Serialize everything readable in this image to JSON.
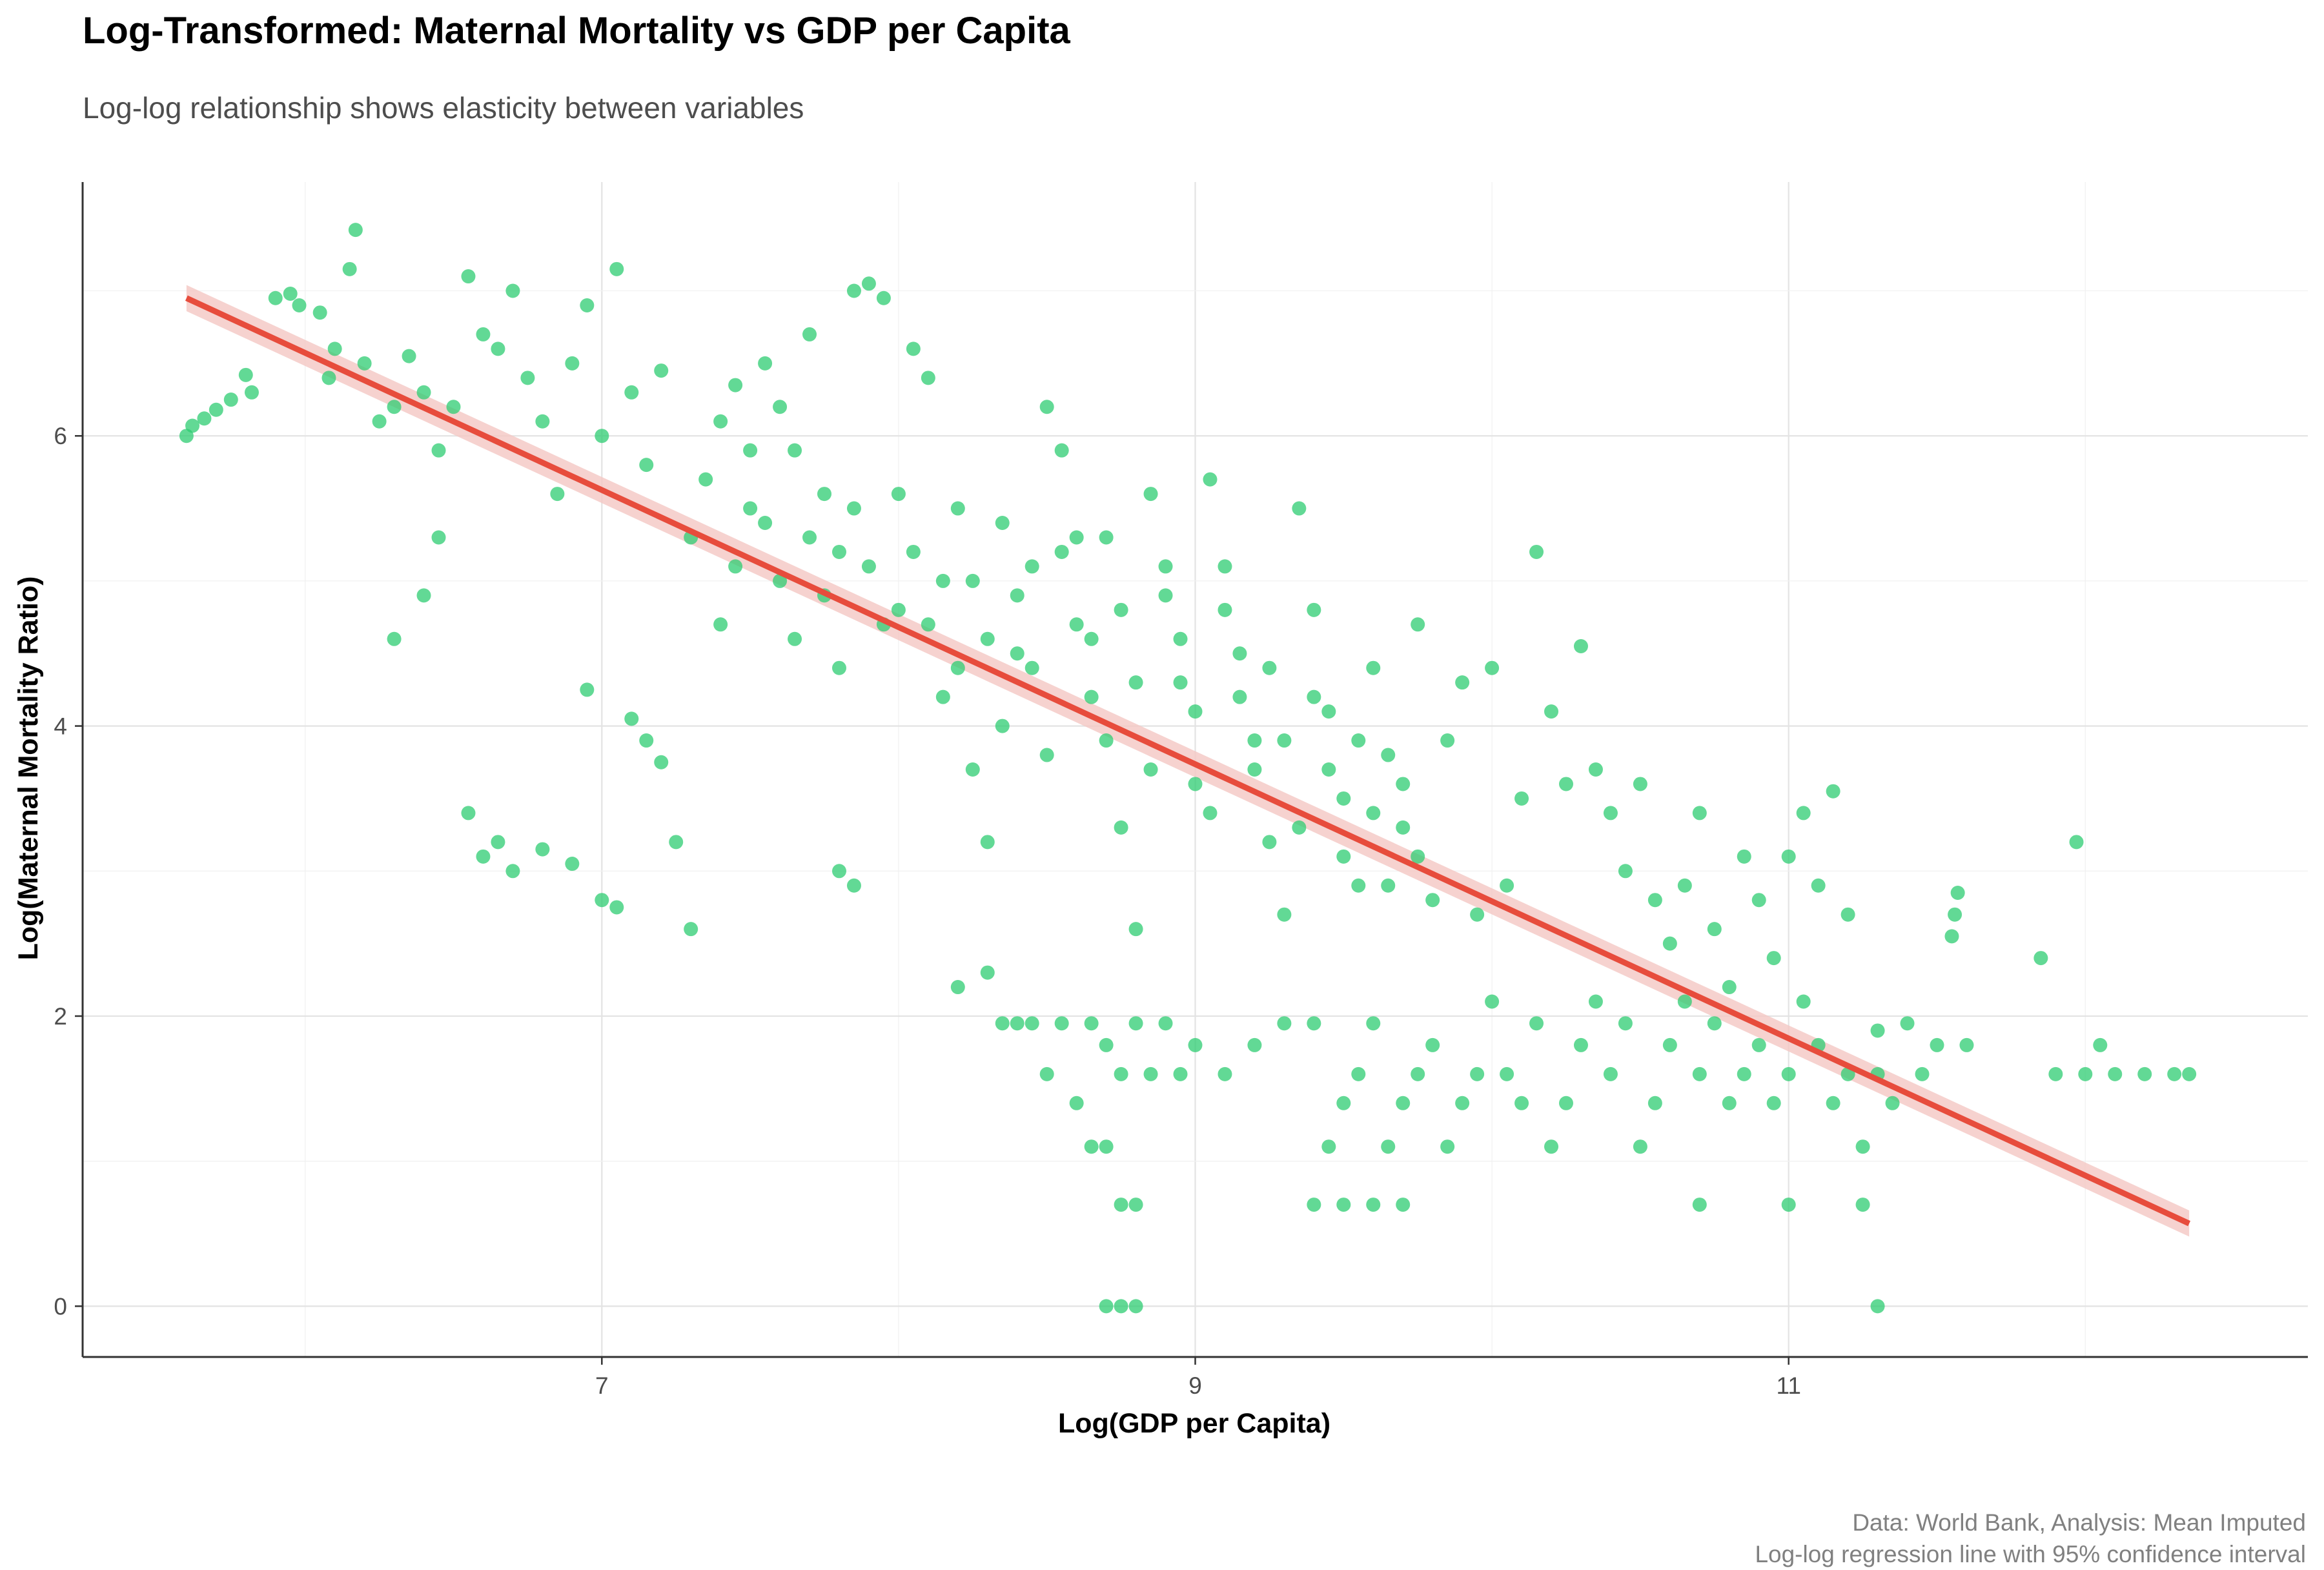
{
  "chart_data": {
    "type": "scatter",
    "title": "Log-Transformed: Maternal Mortality vs GDP per Capita",
    "subtitle": "Log-log relationship shows elasticity between variables",
    "xlabel": "Log(GDP per Capita)",
    "ylabel": "Log(Maternal Mortality Ratio)",
    "caption": [
      "Data: World Bank, Analysis: Mean Imputed",
      "Log-log regression line with 95% confidence interval"
    ],
    "xlim": [
      5.25,
      12.75
    ],
    "ylim": [
      -0.35,
      7.75
    ],
    "x_ticks": [
      7,
      9,
      11
    ],
    "y_ticks": [
      0,
      2,
      4,
      6
    ],
    "grid": true,
    "point_color": "#2ecc71",
    "line_color": "#e74c3c",
    "band_color": "#f4c7c3",
    "series": [
      {
        "name": "",
        "kind": "points",
        "points": [
          [
            5.6,
            6.0
          ],
          [
            5.62,
            6.07
          ],
          [
            5.66,
            6.12
          ],
          [
            5.7,
            6.18
          ],
          [
            5.75,
            6.25
          ],
          [
            5.8,
            6.42
          ],
          [
            5.82,
            6.3
          ],
          [
            5.9,
            6.95
          ],
          [
            5.95,
            6.98
          ],
          [
            5.98,
            6.9
          ],
          [
            6.05,
            6.85
          ],
          [
            6.08,
            6.4
          ],
          [
            6.1,
            6.6
          ],
          [
            6.15,
            7.15
          ],
          [
            6.17,
            7.42
          ],
          [
            6.2,
            6.5
          ],
          [
            6.25,
            6.1
          ],
          [
            6.3,
            6.2
          ],
          [
            6.35,
            6.55
          ],
          [
            6.4,
            6.3
          ],
          [
            6.45,
            5.9
          ],
          [
            6.5,
            6.2
          ],
          [
            6.55,
            7.1
          ],
          [
            6.6,
            6.7
          ],
          [
            6.65,
            6.6
          ],
          [
            6.7,
            7.0
          ],
          [
            6.75,
            6.4
          ],
          [
            6.8,
            6.1
          ],
          [
            6.85,
            5.6
          ],
          [
            6.9,
            6.5
          ],
          [
            6.95,
            6.9
          ],
          [
            7.0,
            6.0
          ],
          [
            7.05,
            7.15
          ],
          [
            7.1,
            6.3
          ],
          [
            7.15,
            5.8
          ],
          [
            7.2,
            6.45
          ],
          [
            6.3,
            4.6
          ],
          [
            6.4,
            4.9
          ],
          [
            6.45,
            5.3
          ],
          [
            6.55,
            3.4
          ],
          [
            6.6,
            3.1
          ],
          [
            6.65,
            3.2
          ],
          [
            6.7,
            3.0
          ],
          [
            6.8,
            3.15
          ],
          [
            6.9,
            3.05
          ],
          [
            6.95,
            4.25
          ],
          [
            7.0,
            2.8
          ],
          [
            7.05,
            2.75
          ],
          [
            7.1,
            4.05
          ],
          [
            7.15,
            3.9
          ],
          [
            7.2,
            3.75
          ],
          [
            7.25,
            3.2
          ],
          [
            7.3,
            2.6
          ],
          [
            7.4,
            4.7
          ],
          [
            7.45,
            5.1
          ],
          [
            7.5,
            5.5
          ],
          [
            7.55,
            6.5
          ],
          [
            7.6,
            6.2
          ],
          [
            7.65,
            5.9
          ],
          [
            7.7,
            6.7
          ],
          [
            7.75,
            5.6
          ],
          [
            7.8,
            5.2
          ],
          [
            7.85,
            7.0
          ],
          [
            7.9,
            7.05
          ],
          [
            7.95,
            6.95
          ],
          [
            7.8,
            3.0
          ],
          [
            7.85,
            2.9
          ],
          [
            8.0,
            4.8
          ],
          [
            8.05,
            6.6
          ],
          [
            8.1,
            6.4
          ],
          [
            8.15,
            5.0
          ],
          [
            8.2,
            4.4
          ],
          [
            8.25,
            3.7
          ],
          [
            8.3,
            3.2
          ],
          [
            8.35,
            4.0
          ],
          [
            8.4,
            4.5
          ],
          [
            8.45,
            5.1
          ],
          [
            8.5,
            6.2
          ],
          [
            8.55,
            5.9
          ],
          [
            8.6,
            5.3
          ],
          [
            8.65,
            4.6
          ],
          [
            8.7,
            3.9
          ],
          [
            8.75,
            3.3
          ],
          [
            8.8,
            2.6
          ],
          [
            8.85,
            5.6
          ],
          [
            8.9,
            4.9
          ],
          [
            8.95,
            4.3
          ],
          [
            9.0,
            3.6
          ],
          [
            9.05,
            5.7
          ],
          [
            9.1,
            5.1
          ],
          [
            9.15,
            4.5
          ],
          [
            9.2,
            3.9
          ],
          [
            9.25,
            3.2
          ],
          [
            9.3,
            2.7
          ],
          [
            9.35,
            5.5
          ],
          [
            9.4,
            4.8
          ],
          [
            9.45,
            4.1
          ],
          [
            9.5,
            3.5
          ],
          [
            9.55,
            2.9
          ],
          [
            9.6,
            4.4
          ],
          [
            9.65,
            3.8
          ],
          [
            9.7,
            3.3
          ],
          [
            9.75,
            4.7
          ],
          [
            9.8,
            2.8
          ],
          [
            9.85,
            3.9
          ],
          [
            9.9,
            4.3
          ],
          [
            9.95,
            2.7
          ],
          [
            10.0,
            4.4
          ],
          [
            10.05,
            2.9
          ],
          [
            10.1,
            3.5
          ],
          [
            10.15,
            5.2
          ],
          [
            10.2,
            4.1
          ],
          [
            10.25,
            3.6
          ],
          [
            10.3,
            4.55
          ],
          [
            10.35,
            3.7
          ],
          [
            10.4,
            3.4
          ],
          [
            10.45,
            3.0
          ],
          [
            10.5,
            3.6
          ],
          [
            10.55,
            2.8
          ],
          [
            10.6,
            2.5
          ],
          [
            10.65,
            2.9
          ],
          [
            10.7,
            3.4
          ],
          [
            10.75,
            2.6
          ],
          [
            10.8,
            2.2
          ],
          [
            10.85,
            3.1
          ],
          [
            10.9,
            2.8
          ],
          [
            10.95,
            2.4
          ],
          [
            11.0,
            3.1
          ],
          [
            11.05,
            3.4
          ],
          [
            11.1,
            2.9
          ],
          [
            11.15,
            3.55
          ],
          [
            11.2,
            2.7
          ],
          [
            11.3,
            1.9
          ],
          [
            11.4,
            1.95
          ],
          [
            11.5,
            1.8
          ],
          [
            11.55,
            2.55
          ],
          [
            11.56,
            2.7
          ],
          [
            11.57,
            2.85
          ],
          [
            11.6,
            1.8
          ],
          [
            11.85,
            2.4
          ],
          [
            11.9,
            1.6
          ],
          [
            11.97,
            3.2
          ],
          [
            12.0,
            1.6
          ],
          [
            12.05,
            1.8
          ],
          [
            12.1,
            1.6
          ],
          [
            12.2,
            1.6
          ],
          [
            12.3,
            1.6
          ],
          [
            12.35,
            1.6
          ],
          [
            8.2,
            2.2
          ],
          [
            8.3,
            2.3
          ],
          [
            8.35,
            1.95
          ],
          [
            8.4,
            1.95
          ],
          [
            8.45,
            1.95
          ],
          [
            8.5,
            1.6
          ],
          [
            8.55,
            1.95
          ],
          [
            8.6,
            1.4
          ],
          [
            8.65,
            1.95
          ],
          [
            8.7,
            1.8
          ],
          [
            8.75,
            1.6
          ],
          [
            8.8,
            1.95
          ],
          [
            8.85,
            1.6
          ],
          [
            8.9,
            1.95
          ],
          [
            8.95,
            1.6
          ],
          [
            9.0,
            1.8
          ],
          [
            8.65,
            1.1
          ],
          [
            8.7,
            1.1
          ],
          [
            8.75,
            0.7
          ],
          [
            8.8,
            0.7
          ],
          [
            8.7,
            0.0
          ],
          [
            8.75,
            0.0
          ],
          [
            8.8,
            0.0
          ],
          [
            9.1,
            1.6
          ],
          [
            9.2,
            1.8
          ],
          [
            9.3,
            1.95
          ],
          [
            9.4,
            1.95
          ],
          [
            9.45,
            1.1
          ],
          [
            9.5,
            1.4
          ],
          [
            9.55,
            1.6
          ],
          [
            9.6,
            1.95
          ],
          [
            9.65,
            1.1
          ],
          [
            9.7,
            1.4
          ],
          [
            9.75,
            1.6
          ],
          [
            9.8,
            1.8
          ],
          [
            9.85,
            1.1
          ],
          [
            9.9,
            1.4
          ],
          [
            9.95,
            1.6
          ],
          [
            10.0,
            2.1
          ],
          [
            10.05,
            1.6
          ],
          [
            10.1,
            1.4
          ],
          [
            10.15,
            1.95
          ],
          [
            10.2,
            1.1
          ],
          [
            10.25,
            1.4
          ],
          [
            10.3,
            1.8
          ],
          [
            10.35,
            2.1
          ],
          [
            10.4,
            1.6
          ],
          [
            10.45,
            1.95
          ],
          [
            10.5,
            1.1
          ],
          [
            10.55,
            1.4
          ],
          [
            10.6,
            1.8
          ],
          [
            10.65,
            2.1
          ],
          [
            10.7,
            1.6
          ],
          [
            10.75,
            1.95
          ],
          [
            10.8,
            1.4
          ],
          [
            10.85,
            1.6
          ],
          [
            10.9,
            1.8
          ],
          [
            10.95,
            1.4
          ],
          [
            11.0,
            1.6
          ],
          [
            11.05,
            2.1
          ],
          [
            11.1,
            1.8
          ],
          [
            11.15,
            1.4
          ],
          [
            11.2,
            1.6
          ],
          [
            11.25,
            1.1
          ],
          [
            11.3,
            1.6
          ],
          [
            11.35,
            1.4
          ],
          [
            11.45,
            1.6
          ],
          [
            9.4,
            0.7
          ],
          [
            9.5,
            0.7
          ],
          [
            9.6,
            0.7
          ],
          [
            9.7,
            0.7
          ],
          [
            10.7,
            0.7
          ],
          [
            11.0,
            0.7
          ],
          [
            11.25,
            0.7
          ],
          [
            11.3,
            0.0
          ],
          [
            7.3,
            5.3
          ],
          [
            7.35,
            5.7
          ],
          [
            7.4,
            6.1
          ],
          [
            7.45,
            6.35
          ],
          [
            7.5,
            5.9
          ],
          [
            7.55,
            5.4
          ],
          [
            7.6,
            5.0
          ],
          [
            7.65,
            4.6
          ],
          [
            7.7,
            5.3
          ],
          [
            7.75,
            4.9
          ],
          [
            7.8,
            4.4
          ],
          [
            7.85,
            5.5
          ],
          [
            7.9,
            5.1
          ],
          [
            7.95,
            4.7
          ],
          [
            8.0,
            5.6
          ],
          [
            8.05,
            5.2
          ],
          [
            8.1,
            4.7
          ],
          [
            8.15,
            4.2
          ],
          [
            8.2,
            5.5
          ],
          [
            8.25,
            5.0
          ],
          [
            8.3,
            4.6
          ],
          [
            8.35,
            5.4
          ],
          [
            8.4,
            4.9
          ],
          [
            8.45,
            4.4
          ],
          [
            8.5,
            3.8
          ],
          [
            8.55,
            5.2
          ],
          [
            8.6,
            4.7
          ],
          [
            8.65,
            4.2
          ],
          [
            8.7,
            5.3
          ],
          [
            8.75,
            4.8
          ],
          [
            8.8,
            4.3
          ],
          [
            8.85,
            3.7
          ],
          [
            8.9,
            5.1
          ],
          [
            8.95,
            4.6
          ],
          [
            9.0,
            4.1
          ],
          [
            9.05,
            3.4
          ],
          [
            9.1,
            4.8
          ],
          [
            9.15,
            4.2
          ],
          [
            9.2,
            3.7
          ],
          [
            9.25,
            4.4
          ],
          [
            9.3,
            3.9
          ],
          [
            9.35,
            3.3
          ],
          [
            9.4,
            4.2
          ],
          [
            9.45,
            3.7
          ],
          [
            9.5,
            3.1
          ],
          [
            9.55,
            3.9
          ],
          [
            9.6,
            3.4
          ],
          [
            9.65,
            2.9
          ],
          [
            9.7,
            3.6
          ],
          [
            9.75,
            3.1
          ]
        ]
      },
      {
        "name": "",
        "kind": "regression-line",
        "x": [
          5.6,
          12.35
        ],
        "y": [
          6.95,
          0.57
        ],
        "ci_half_width_ends": 0.09
      }
    ]
  }
}
